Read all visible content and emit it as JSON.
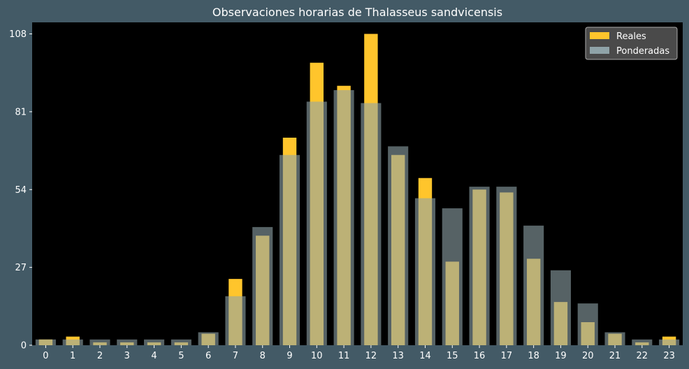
{
  "colors": {
    "figure_background": "#435a66",
    "plot_background": "#000000",
    "reales": "#ffc52c",
    "ponderadas": "#8fa3a8",
    "ponderadas_opacity": 0.6,
    "text": "#ffffff",
    "legend_background": "#4a4a4a",
    "legend_border": "#aaaaaa"
  },
  "chart_data": {
    "type": "bar",
    "title": "Observaciones horarias de Thalasseus sandvicensis",
    "xlabel": "",
    "ylabel": "",
    "categories": [
      "0",
      "1",
      "2",
      "3",
      "4",
      "5",
      "6",
      "7",
      "8",
      "9",
      "10",
      "11",
      "12",
      "13",
      "14",
      "15",
      "16",
      "17",
      "18",
      "19",
      "20",
      "21",
      "22",
      "23"
    ],
    "series": [
      {
        "name": "Reales",
        "values": [
          2,
          3,
          1,
          1,
          1,
          1,
          4,
          23,
          38,
          72,
          98,
          90,
          108,
          66,
          58,
          29,
          54,
          53,
          30,
          15,
          8,
          4,
          1,
          3
        ]
      },
      {
        "name": "Ponderadas",
        "values": [
          2,
          2,
          2,
          2,
          2,
          2,
          4.5,
          17,
          41,
          66,
          84.5,
          88.5,
          84,
          69,
          51,
          47.5,
          55,
          55,
          41.5,
          26,
          14.5,
          4.5,
          2,
          2
        ]
      }
    ],
    "yticks": [
      "0",
      "27",
      "54",
      "81",
      "108"
    ],
    "ylim": [
      0,
      112
    ],
    "grid": false,
    "legend_position": "top-right"
  }
}
